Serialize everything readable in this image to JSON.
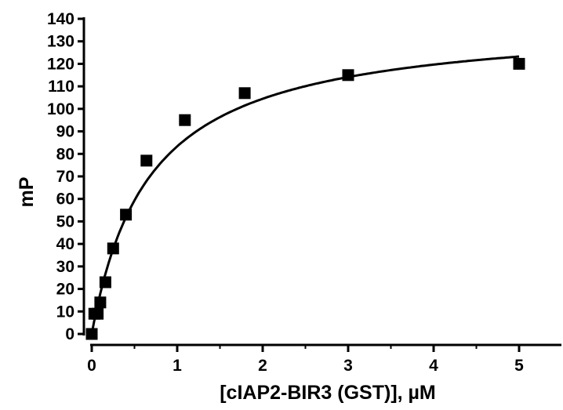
{
  "chart_data": {
    "type": "scatter",
    "title": "",
    "xlabel": "[cIAP2-BIR3 (GST)], µM",
    "ylabel": "mP",
    "xlim": [
      0,
      5.4
    ],
    "ylim": [
      0,
      140
    ],
    "x_ticks": [
      0,
      1,
      2,
      3,
      4,
      5
    ],
    "y_ticks": [
      0,
      10,
      20,
      30,
      40,
      50,
      60,
      70,
      80,
      90,
      100,
      110,
      120,
      130,
      140
    ],
    "grid": false,
    "legend": "none",
    "series": [
      {
        "marker": "square",
        "color": "#000000",
        "points": [
          {
            "x": 0.0,
            "y": 0
          },
          {
            "x": 0.03,
            "y": 9
          },
          {
            "x": 0.07,
            "y": 9
          },
          {
            "x": 0.1,
            "y": 14
          },
          {
            "x": 0.16,
            "y": 23
          },
          {
            "x": 0.25,
            "y": 38
          },
          {
            "x": 0.4,
            "y": 53
          },
          {
            "x": 0.64,
            "y": 77
          },
          {
            "x": 1.09,
            "y": 95
          },
          {
            "x": 1.79,
            "y": 107
          },
          {
            "x": 3.0,
            "y": 115
          },
          {
            "x": 5.0,
            "y": 120
          }
        ]
      }
    ],
    "fit_curve": {
      "type": "one-site binding hyperbola",
      "bmax": 140,
      "kd": 0.68,
      "x_range": [
        0,
        5.0
      ],
      "color": "#000000"
    }
  }
}
